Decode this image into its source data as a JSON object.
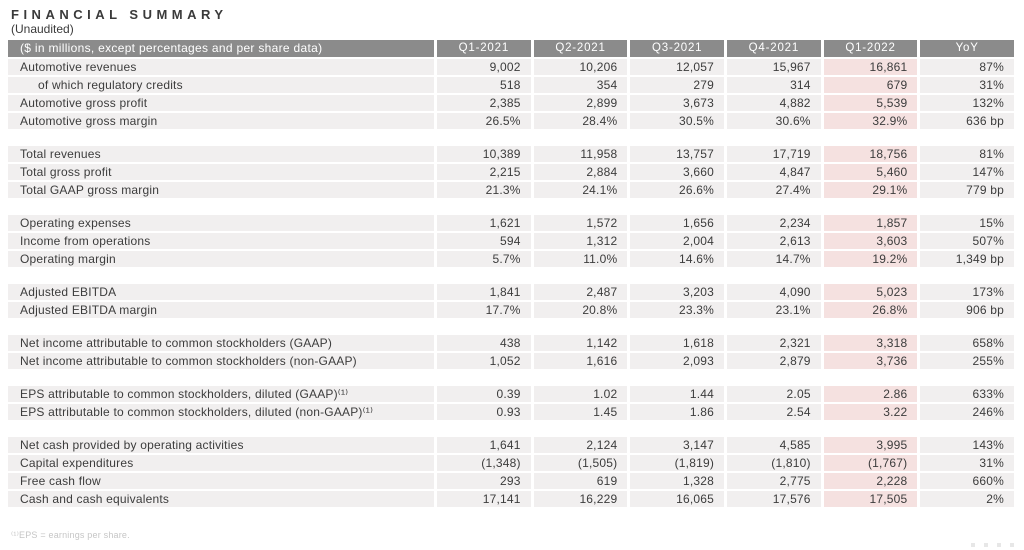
{
  "header": {
    "title": "FINANCIAL SUMMARY",
    "subtitle": "(Unaudited)"
  },
  "table": {
    "label_header": "($ in millions, except percentages and per share data)",
    "columns": [
      "Q1-2021",
      "Q2-2021",
      "Q3-2021",
      "Q4-2021",
      "Q1-2022",
      "YoY"
    ],
    "highlight_column": "Q1-2022",
    "sections": [
      {
        "rows": [
          {
            "label": "Automotive revenues",
            "indent": false,
            "values": [
              "9,002",
              "10,206",
              "12,057",
              "15,967",
              "16,861",
              "87%"
            ]
          },
          {
            "label": "of which regulatory credits",
            "indent": true,
            "values": [
              "518",
              "354",
              "279",
              "314",
              "679",
              "31%"
            ]
          },
          {
            "label": "Automotive gross profit",
            "indent": false,
            "values": [
              "2,385",
              "2,899",
              "3,673",
              "4,882",
              "5,539",
              "132%"
            ]
          },
          {
            "label": "Automotive gross margin",
            "indent": false,
            "values": [
              "26.5%",
              "28.4%",
              "30.5%",
              "30.6%",
              "32.9%",
              "636 bp"
            ]
          }
        ]
      },
      {
        "rows": [
          {
            "label": "Total revenues",
            "indent": false,
            "values": [
              "10,389",
              "11,958",
              "13,757",
              "17,719",
              "18,756",
              "81%"
            ]
          },
          {
            "label": "Total gross profit",
            "indent": false,
            "values": [
              "2,215",
              "2,884",
              "3,660",
              "4,847",
              "5,460",
              "147%"
            ]
          },
          {
            "label": "Total GAAP gross margin",
            "indent": false,
            "values": [
              "21.3%",
              "24.1%",
              "26.6%",
              "27.4%",
              "29.1%",
              "779 bp"
            ]
          }
        ]
      },
      {
        "rows": [
          {
            "label": "Operating expenses",
            "indent": false,
            "values": [
              "1,621",
              "1,572",
              "1,656",
              "2,234",
              "1,857",
              "15%"
            ]
          },
          {
            "label": "Income from operations",
            "indent": false,
            "values": [
              "594",
              "1,312",
              "2,004",
              "2,613",
              "3,603",
              "507%"
            ]
          },
          {
            "label": "Operating margin",
            "indent": false,
            "values": [
              "5.7%",
              "11.0%",
              "14.6%",
              "14.7%",
              "19.2%",
              "1,349 bp"
            ]
          }
        ]
      },
      {
        "rows": [
          {
            "label": "Adjusted EBITDA",
            "indent": false,
            "values": [
              "1,841",
              "2,487",
              "3,203",
              "4,090",
              "5,023",
              "173%"
            ]
          },
          {
            "label": "Adjusted EBITDA margin",
            "indent": false,
            "values": [
              "17.7%",
              "20.8%",
              "23.3%",
              "23.1%",
              "26.8%",
              "906 bp"
            ]
          }
        ]
      },
      {
        "rows": [
          {
            "label": "Net income attributable to common stockholders (GAAP)",
            "indent": false,
            "values": [
              "438",
              "1,142",
              "1,618",
              "2,321",
              "3,318",
              "658%"
            ]
          },
          {
            "label": "Net income attributable to common stockholders (non-GAAP)",
            "indent": false,
            "values": [
              "1,052",
              "1,616",
              "2,093",
              "2,879",
              "3,736",
              "255%"
            ]
          }
        ]
      },
      {
        "rows": [
          {
            "label": "EPS attributable to common stockholders, diluted (GAAP)⁽¹⁾",
            "indent": false,
            "values": [
              "0.39",
              "1.02",
              "1.44",
              "2.05",
              "2.86",
              "633%"
            ]
          },
          {
            "label": "EPS attributable to common stockholders, diluted (non-GAAP)⁽¹⁾",
            "indent": false,
            "values": [
              "0.93",
              "1.45",
              "1.86",
              "2.54",
              "3.22",
              "246%"
            ]
          }
        ]
      },
      {
        "rows": [
          {
            "label": "Net cash provided by operating activities",
            "indent": false,
            "values": [
              "1,641",
              "2,124",
              "3,147",
              "4,585",
              "3,995",
              "143%"
            ]
          },
          {
            "label": "Capital expenditures",
            "indent": false,
            "values": [
              "(1,348)",
              "(1,505)",
              "(1,819)",
              "(1,810)",
              "(1,767)",
              "31%"
            ]
          },
          {
            "label": "Free cash flow",
            "indent": false,
            "values": [
              "293",
              "619",
              "1,328",
              "2,775",
              "2,228",
              "660%"
            ]
          },
          {
            "label": "Cash and cash equivalents",
            "indent": false,
            "values": [
              "17,141",
              "16,229",
              "16,065",
              "17,576",
              "17,505",
              "2%"
            ]
          }
        ]
      }
    ]
  },
  "footnote": "⁽¹⁾EPS = earnings per share.",
  "colors": {
    "header_bar": "#8b8b8b",
    "header_text": "#ffffff",
    "row_background": "#f1efef",
    "highlight_background": "#f5e1e0",
    "body_text": "#3c3c3c",
    "footnote_text": "#c6c6c6"
  }
}
